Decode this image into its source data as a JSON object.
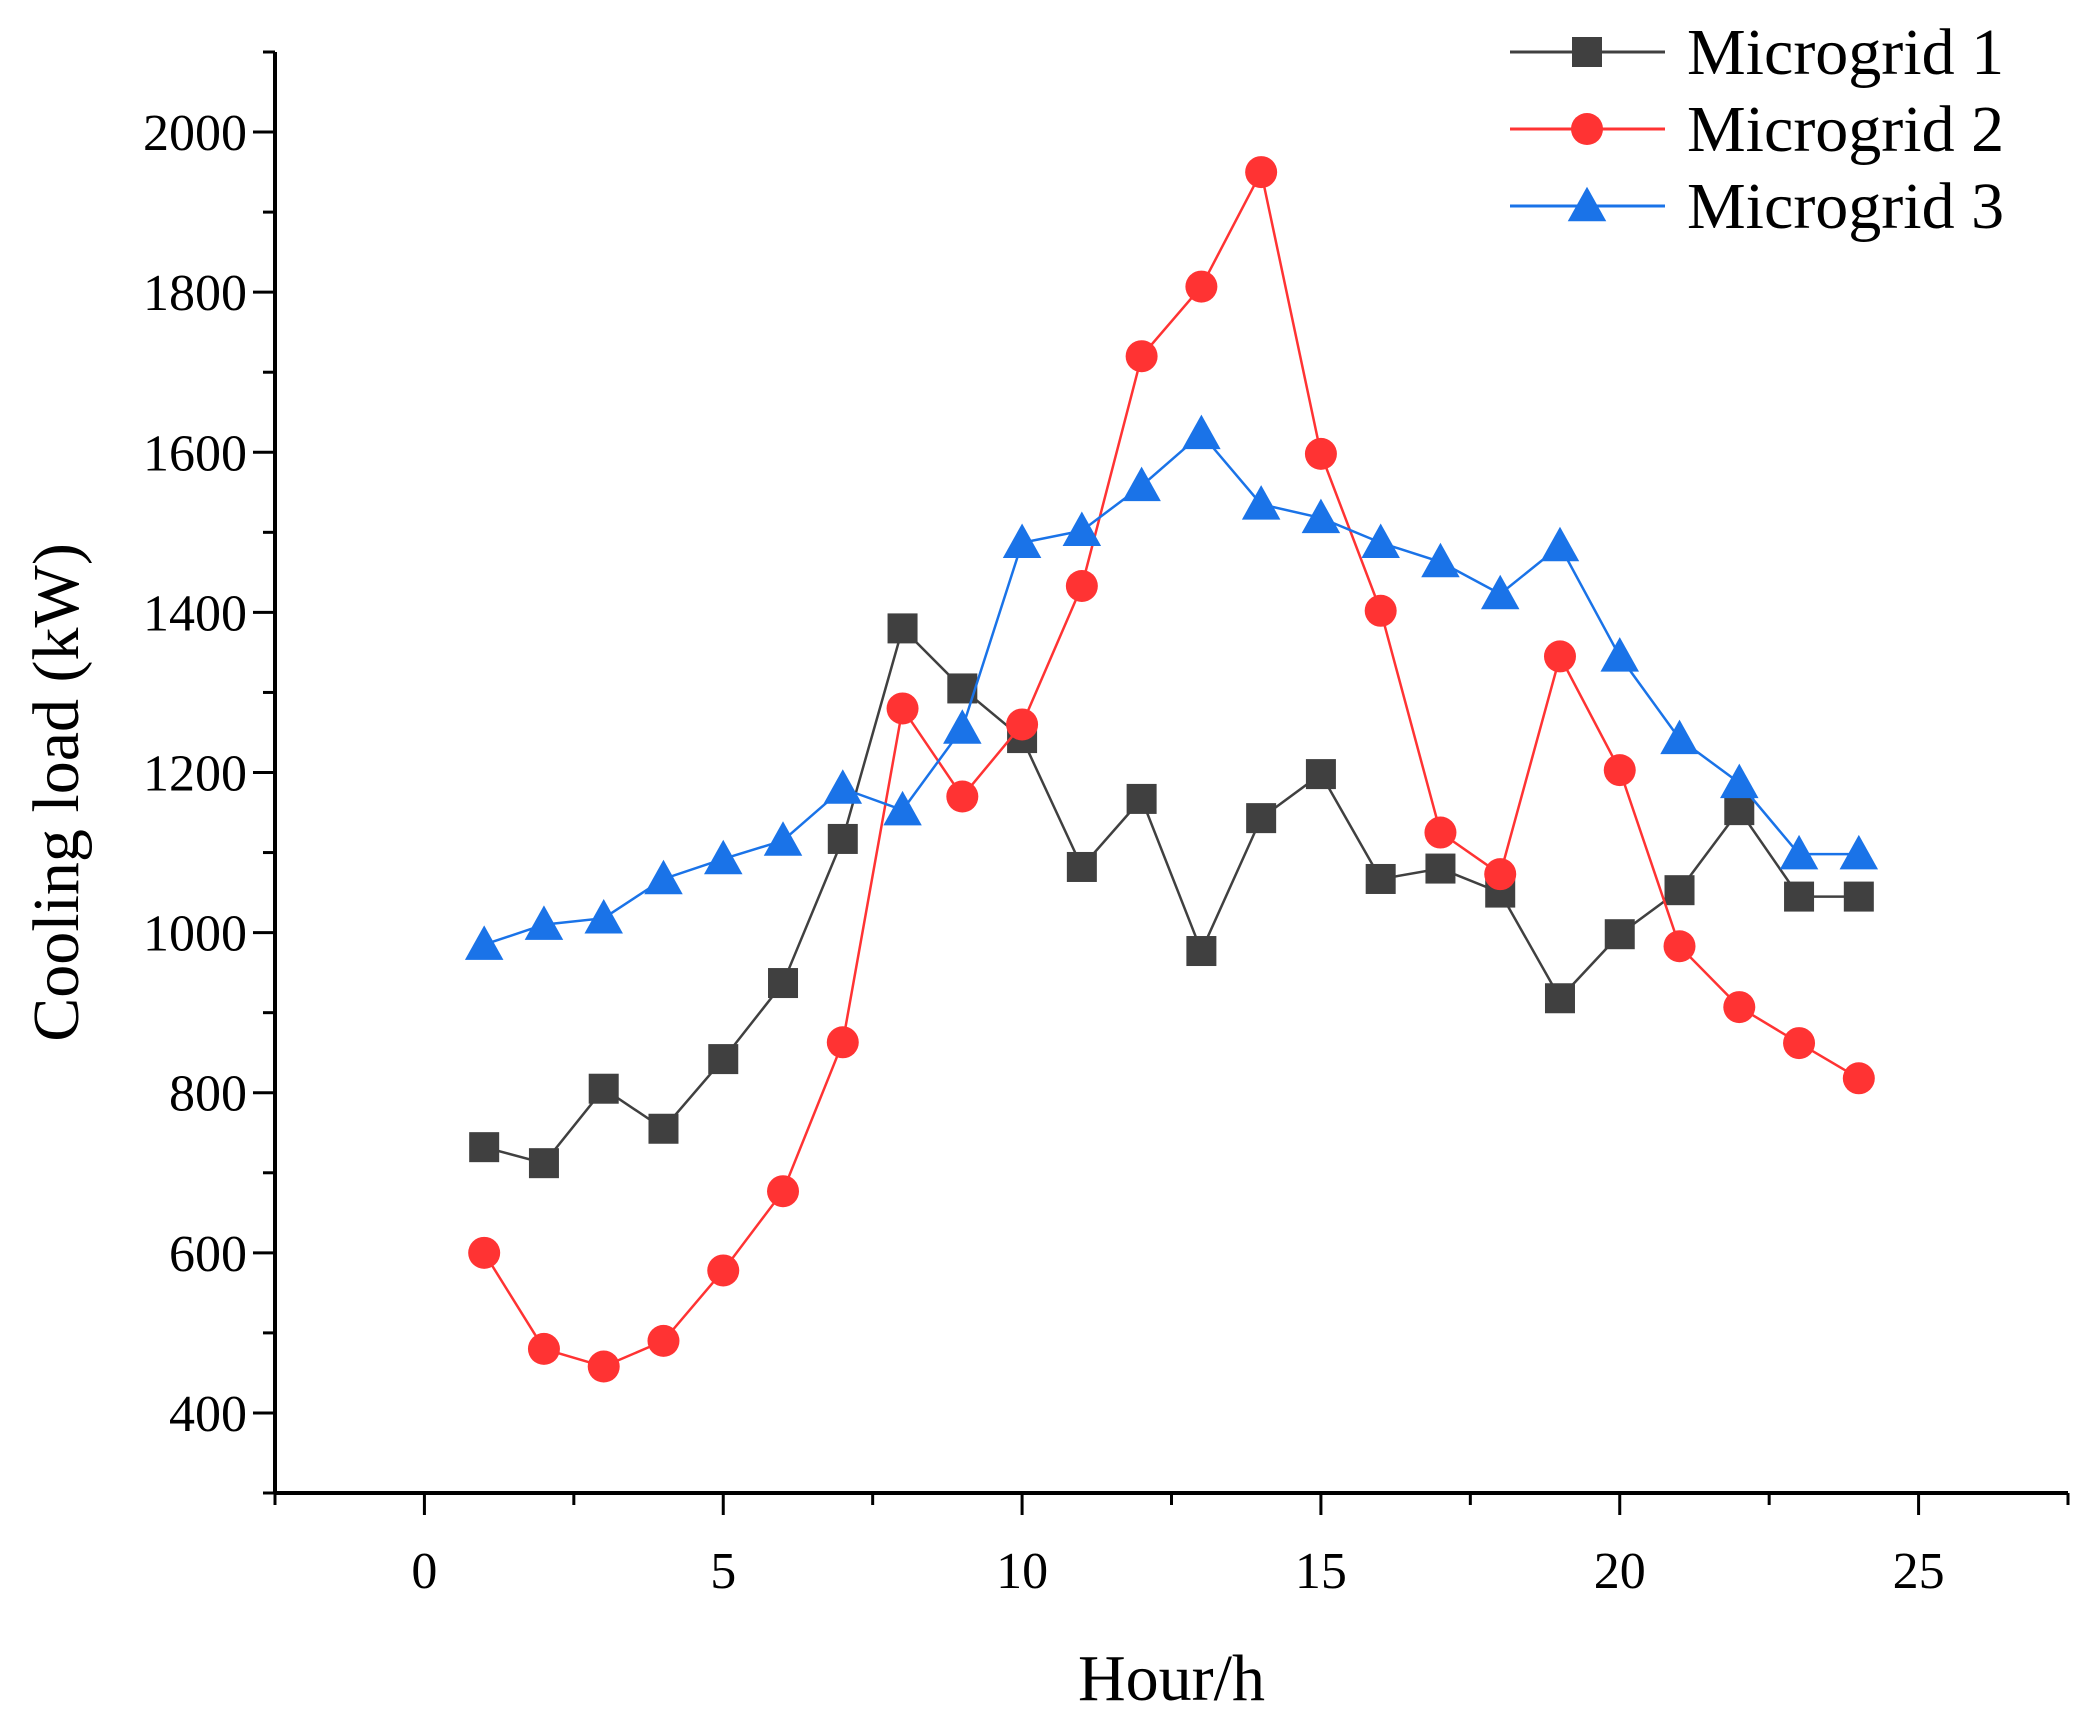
{
  "chart_data": {
    "type": "line",
    "title": "",
    "xlabel": "Hour/h",
    "ylabel": "Cooling load (kW)",
    "xlim": [
      -2.5,
      27.5
    ],
    "ylim": [
      300,
      2100
    ],
    "xticks": [
      0,
      5,
      10,
      15,
      20,
      25
    ],
    "yticks": [
      400,
      600,
      800,
      1000,
      1200,
      1400,
      1600,
      1800,
      2000
    ],
    "grid": false,
    "legend_position": "top-right",
    "x": [
      1,
      2,
      3,
      4,
      5,
      6,
      7,
      8,
      9,
      10,
      11,
      12,
      13,
      14,
      15,
      16,
      17,
      18,
      19,
      20,
      21,
      22,
      23,
      24
    ],
    "series": [
      {
        "name": "Microgrid 1",
        "color": "#404040",
        "marker": "square",
        "values": [
          732,
          712,
          805,
          755,
          842,
          937,
          1117,
          1380,
          1305,
          1243,
          1082,
          1167,
          977,
          1143,
          1198,
          1067,
          1080,
          1050,
          918,
          998,
          1053,
          1153,
          1045,
          1045
        ]
      },
      {
        "name": "Microgrid 2",
        "color": "#ff3333",
        "marker": "circle",
        "values": [
          600,
          480,
          458,
          490,
          578,
          677,
          863,
          1280,
          1170,
          1260,
          1433,
          1720,
          1807,
          1950,
          1598,
          1402,
          1125,
          1073,
          1345,
          1203,
          983,
          907,
          862,
          818
        ]
      },
      {
        "name": "Microgrid 3",
        "color": "#1a73e8",
        "marker": "triangle",
        "values": [
          985,
          1010,
          1018,
          1067,
          1092,
          1115,
          1180,
          1153,
          1255,
          1487,
          1502,
          1558,
          1623,
          1535,
          1518,
          1487,
          1463,
          1423,
          1483,
          1345,
          1242,
          1187,
          1098,
          1098
        ]
      }
    ]
  }
}
